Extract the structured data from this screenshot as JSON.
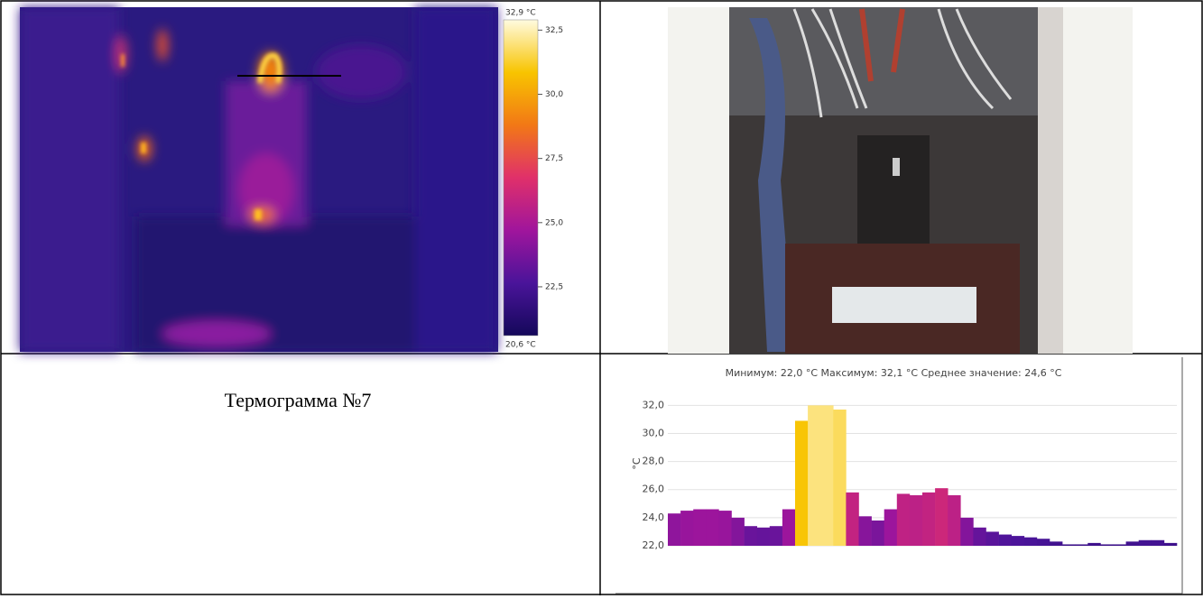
{
  "thermogram": {
    "scale": {
      "min": {
        "value": 20.6,
        "label": "20,6 °C"
      },
      "max": {
        "value": 32.9,
        "label": "32,9 °C"
      },
      "ticks": [
        {
          "value": 32.5,
          "label": "32,5"
        },
        {
          "value": 30.0,
          "label": "30,0"
        },
        {
          "value": 27.5,
          "label": "27,5"
        },
        {
          "value": 25.0,
          "label": "25,0"
        },
        {
          "value": 22.5,
          "label": "22,5"
        }
      ],
      "colormap": [
        "#14085a",
        "#4a149a",
        "#a0159c",
        "#e0306a",
        "#f27816",
        "#f8c400",
        "#fffbe0"
      ]
    }
  },
  "caption": "Термограмма №7",
  "chart_data": {
    "type": "bar",
    "title": "Минимум: 22,0 °C Максимум: 32,1 °C Среднее значение: 24,6 °C",
    "y_label": "°C",
    "values": [
      24.3,
      24.5,
      24.6,
      24.6,
      24.5,
      24.0,
      23.4,
      23.3,
      23.4,
      24.6,
      30.9,
      32.0,
      32.0,
      31.7,
      25.8,
      24.1,
      23.8,
      24.6,
      25.7,
      25.6,
      25.8,
      26.1,
      25.6,
      24.0,
      23.3,
      23.0,
      22.8,
      22.7,
      22.6,
      22.5,
      22.3,
      22.1,
      22.1,
      22.2,
      22.1,
      22.1,
      22.3,
      22.4,
      22.4,
      22.2
    ],
    "ylim": [
      22.0,
      32.6
    ],
    "yticks": [
      {
        "value": 22.0,
        "label": "22,0"
      },
      {
        "value": 24.0,
        "label": "24,0"
      },
      {
        "value": 26.0,
        "label": "26,0"
      },
      {
        "value": 28.0,
        "label": "28,0"
      },
      {
        "value": 30.0,
        "label": "30,0"
      },
      {
        "value": 32.0,
        "label": "32,0"
      }
    ],
    "grid": true
  }
}
